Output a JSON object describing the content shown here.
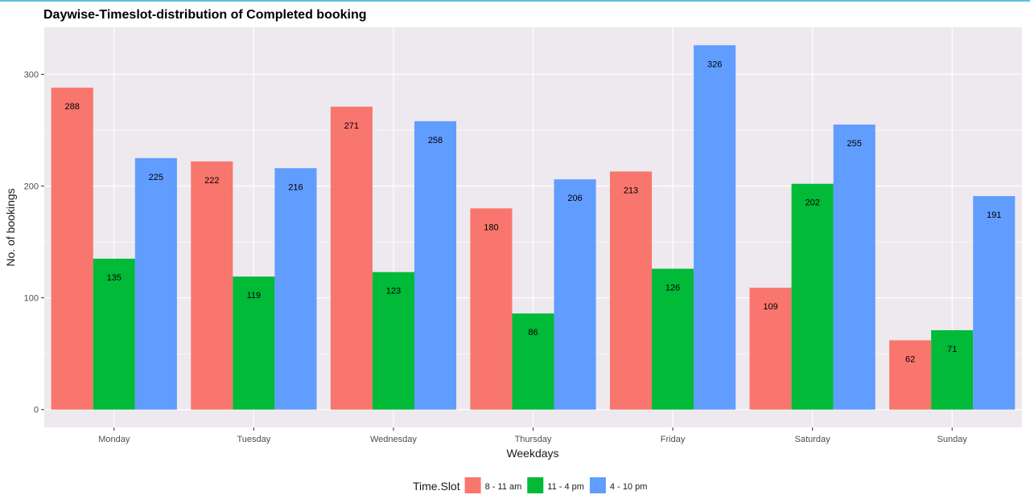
{
  "chart_data": {
    "type": "bar",
    "title": "Daywise-Timeslot-distribution of Completed booking",
    "xlabel": "Weekdays",
    "ylabel": "No. of bookings",
    "categories": [
      "Monday",
      "Tuesday",
      "Wednesday",
      "Thursday",
      "Friday",
      "Saturday",
      "Sunday"
    ],
    "series": [
      {
        "name": "8 - 11 am",
        "color": "#F8766D",
        "values": [
          288,
          222,
          271,
          180,
          213,
          109,
          62
        ]
      },
      {
        "name": "11 - 4 pm",
        "color": "#00BA38",
        "values": [
          135,
          119,
          123,
          86,
          126,
          202,
          71
        ]
      },
      {
        "name": "4 - 10 pm",
        "color": "#619CFF",
        "values": [
          225,
          216,
          258,
          206,
          326,
          255,
          191
        ]
      }
    ],
    "ylim": [
      -16,
      342
    ],
    "yticks": [
      0,
      100,
      200,
      300
    ],
    "grid": true,
    "legend": {
      "title": "Time.Slot",
      "position": "bottom"
    },
    "panel_color": "#EDE9EE"
  }
}
